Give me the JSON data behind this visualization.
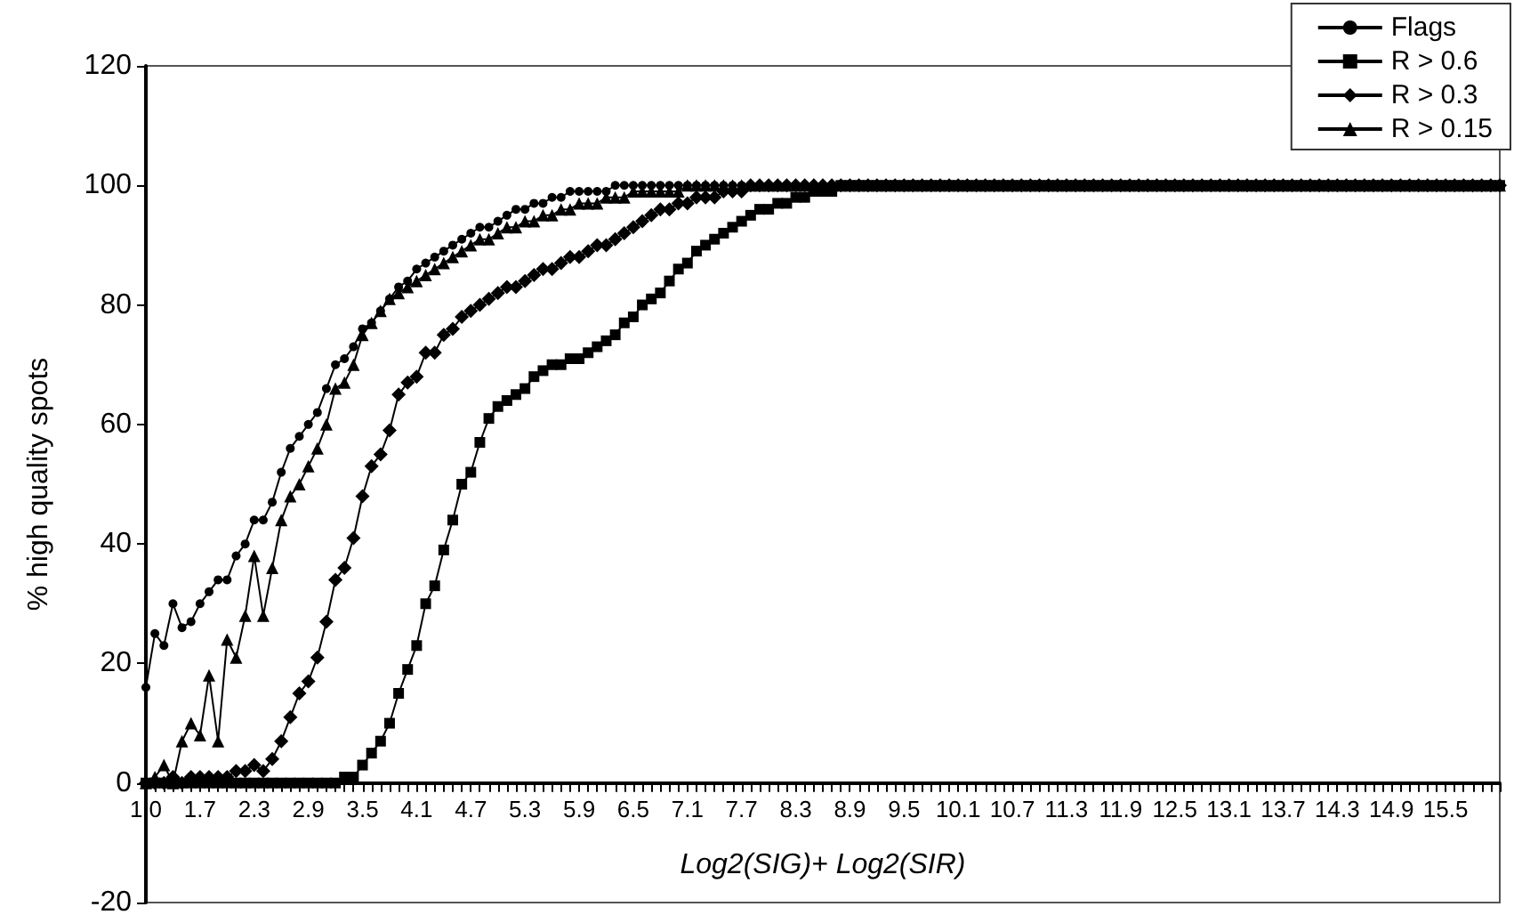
{
  "chart_data": {
    "type": "line",
    "xlabel": "Log2(SIG)+ Log2(SIR)",
    "ylabel": "% high quality spots",
    "categories": [
      "1.0",
      null,
      null,
      null,
      null,
      null,
      "1.7",
      null,
      null,
      null,
      null,
      null,
      "2.3",
      null,
      null,
      null,
      null,
      null,
      "2.9",
      null,
      null,
      null,
      null,
      null,
      "3.5",
      null,
      null,
      null,
      null,
      null,
      "4.1",
      null,
      null,
      null,
      null,
      null,
      "4.7",
      null,
      null,
      null,
      null,
      null,
      "5.3",
      null,
      null,
      null,
      null,
      null,
      "5.9",
      null,
      null,
      null,
      null,
      null,
      "6.5",
      null,
      null,
      null,
      null,
      null,
      "7.1",
      null,
      null,
      null,
      null,
      null,
      "7.7",
      null,
      null,
      null,
      null,
      null,
      "8.3",
      null,
      null,
      null,
      null,
      null,
      "8.9",
      null,
      null,
      null,
      null,
      null,
      "9.5",
      null,
      null,
      null,
      null,
      null,
      "10.1",
      null,
      null,
      null,
      null,
      null,
      "10.7",
      null,
      null,
      null,
      null,
      null,
      "11.3",
      null,
      null,
      null,
      null,
      null,
      "11.9",
      null,
      null,
      null,
      null,
      null,
      "12.5",
      null,
      null,
      null,
      null,
      null,
      "13.1",
      null,
      null,
      null,
      null,
      null,
      "13.7",
      null,
      null,
      null,
      null,
      null,
      "14.3",
      null,
      null,
      null,
      null,
      null,
      "14.9",
      null,
      null,
      null,
      null,
      null,
      "15.5",
      null,
      null,
      null,
      null,
      null,
      null
    ],
    "series": [
      {
        "name": "Flags",
        "color": "#000000",
        "marker": "circle",
        "values": [
          16,
          25,
          23,
          30,
          26,
          27,
          30,
          32,
          34,
          34,
          38,
          40,
          44,
          44,
          47,
          52,
          56,
          58,
          60,
          62,
          66,
          70,
          71,
          73,
          76,
          77,
          79,
          81,
          83,
          84,
          86,
          87,
          88,
          89,
          90,
          91,
          92,
          93,
          93,
          94,
          95,
          96,
          96,
          97,
          97,
          98,
          98,
          99,
          99,
          99,
          99,
          99,
          100,
          100,
          100,
          100,
          100,
          100,
          100,
          100,
          100,
          100,
          100,
          100,
          100,
          100,
          100,
          100,
          100,
          100,
          100,
          100,
          100,
          100,
          100,
          100,
          100,
          100,
          100,
          100,
          100,
          100,
          100,
          100,
          100,
          100,
          100,
          100,
          100,
          100,
          100,
          100,
          100,
          100,
          100,
          100,
          100,
          100,
          100,
          100,
          100,
          100,
          100,
          100,
          100,
          100,
          100,
          100,
          100,
          100,
          100,
          100,
          100,
          100,
          100,
          100,
          100,
          100,
          100,
          100,
          100,
          100,
          100,
          100,
          100,
          100,
          100,
          100,
          100,
          100,
          100,
          100,
          100,
          100,
          100,
          100,
          100,
          100,
          100,
          100,
          100,
          100,
          100,
          100,
          100,
          100,
          100,
          100,
          100,
          100,
          100
        ]
      },
      {
        "name": "R > 0.6",
        "color": "#000000",
        "marker": "square",
        "values": [
          0,
          0,
          0,
          0,
          0,
          0,
          0,
          0,
          0,
          0,
          0,
          0,
          0,
          0,
          0,
          0,
          0,
          0,
          0,
          0,
          0,
          0,
          1,
          1,
          3,
          5,
          7,
          10,
          15,
          19,
          23,
          30,
          33,
          39,
          44,
          50,
          52,
          57,
          61,
          63,
          64,
          65,
          66,
          68,
          69,
          70,
          70,
          71,
          71,
          72,
          73,
          74,
          75,
          77,
          78,
          80,
          81,
          82,
          84,
          86,
          87,
          89,
          90,
          91,
          92,
          93,
          94,
          95,
          96,
          96,
          97,
          97,
          98,
          98,
          99,
          99,
          99,
          100,
          100,
          100,
          100,
          100,
          100,
          100,
          100,
          100,
          100,
          100,
          100,
          100,
          100,
          100,
          100,
          100,
          100,
          100,
          100,
          100,
          100,
          100,
          100,
          100,
          100,
          100,
          100,
          100,
          100,
          100,
          100,
          100,
          100,
          100,
          100,
          100,
          100,
          100,
          100,
          100,
          100,
          100,
          100,
          100,
          100,
          100,
          100,
          100,
          100,
          100,
          100,
          100,
          100,
          100,
          100,
          100,
          100,
          100,
          100,
          100,
          100,
          100,
          100,
          100,
          100,
          100,
          100,
          100,
          100,
          100,
          100,
          100,
          100
        ]
      },
      {
        "name": "R > 0.3",
        "color": "#000000",
        "marker": "diamond",
        "values": [
          0,
          0,
          0,
          1,
          0,
          1,
          1,
          1,
          1,
          1,
          2,
          2,
          3,
          2,
          4,
          7,
          11,
          15,
          17,
          21,
          27,
          34,
          36,
          41,
          48,
          53,
          55,
          59,
          65,
          67,
          68,
          72,
          72,
          75,
          76,
          78,
          79,
          80,
          81,
          82,
          83,
          83,
          84,
          85,
          86,
          86,
          87,
          88,
          88,
          89,
          90,
          90,
          91,
          92,
          93,
          94,
          95,
          96,
          96,
          97,
          97,
          98,
          98,
          98,
          99,
          99,
          99,
          100,
          100,
          100,
          100,
          100,
          100,
          100,
          100,
          100,
          100,
          100,
          100,
          100,
          100,
          100,
          100,
          100,
          100,
          100,
          100,
          100,
          100,
          100,
          100,
          100,
          100,
          100,
          100,
          100,
          100,
          100,
          100,
          100,
          100,
          100,
          100,
          100,
          100,
          100,
          100,
          100,
          100,
          100,
          100,
          100,
          100,
          100,
          100,
          100,
          100,
          100,
          100,
          100,
          100,
          100,
          100,
          100,
          100,
          100,
          100,
          100,
          100,
          100,
          100,
          100,
          100,
          100,
          100,
          100,
          100,
          100,
          100,
          100,
          100,
          100,
          100,
          100,
          100,
          100,
          100,
          100,
          100,
          100,
          100
        ]
      },
      {
        "name": "R > 0.15",
        "color": "#000000",
        "marker": "triangle",
        "values": [
          0,
          1,
          3,
          0,
          7,
          10,
          8,
          18,
          7,
          24,
          21,
          28,
          38,
          28,
          36,
          44,
          48,
          50,
          53,
          56,
          60,
          66,
          67,
          70,
          75,
          77,
          79,
          81,
          82,
          83,
          84,
          85,
          86,
          87,
          88,
          89,
          90,
          91,
          91,
          92,
          93,
          93,
          94,
          94,
          95,
          95,
          96,
          96,
          97,
          97,
          97,
          98,
          98,
          98,
          99,
          99,
          99,
          99,
          99,
          99,
          100,
          100,
          100,
          100,
          100,
          100,
          100,
          100,
          100,
          100,
          100,
          100,
          100,
          100,
          100,
          100,
          100,
          100,
          100,
          100,
          100,
          100,
          100,
          100,
          100,
          100,
          100,
          100,
          100,
          100,
          100,
          100,
          100,
          100,
          100,
          100,
          100,
          100,
          100,
          100,
          100,
          100,
          100,
          100,
          100,
          100,
          100,
          100,
          100,
          100,
          100,
          100,
          100,
          100,
          100,
          100,
          100,
          100,
          100,
          100,
          100,
          100,
          100,
          100,
          100,
          100,
          100,
          100,
          100,
          100,
          100,
          100,
          100,
          100,
          100,
          100,
          100,
          100,
          100,
          100,
          100,
          100,
          100,
          100,
          100,
          100,
          100,
          100,
          100,
          100,
          100
        ]
      }
    ],
    "ylim": [
      -20,
      120
    ],
    "yticks": [
      -20,
      0,
      20,
      40,
      60,
      80,
      100,
      120
    ],
    "grid": false,
    "legend": "top right",
    "line_style": "solid"
  }
}
